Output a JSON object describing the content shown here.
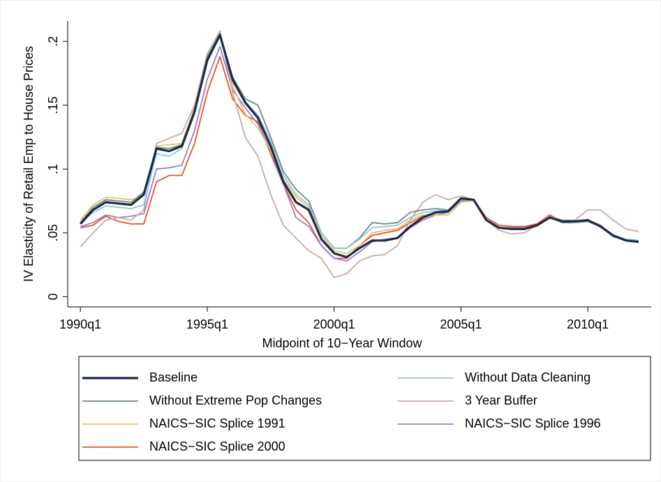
{
  "chart_data": {
    "type": "line",
    "xlabel": "Midpoint of 10−Year Window",
    "ylabel": "IV Elasticity of Retail Emp to House Prices",
    "x": [
      "1990q1",
      "1990q3",
      "1991q1",
      "1991q3",
      "1992q1",
      "1992q3",
      "1993q1",
      "1993q3",
      "1994q1",
      "1994q3",
      "1995q1",
      "1995q3",
      "1996q1",
      "1996q3",
      "1997q1",
      "1997q3",
      "1998q1",
      "1998q3",
      "1999q1",
      "1999q3",
      "2000q1",
      "2000q3",
      "2001q1",
      "2001q3",
      "2002q1",
      "2002q3",
      "2003q1",
      "2003q3",
      "2004q1",
      "2004q3",
      "2005q1",
      "2005q3",
      "2006q1",
      "2006q3",
      "2007q1",
      "2007q3",
      "2008q1",
      "2008q3",
      "2009q1",
      "2009q3",
      "2010q1",
      "2010q3",
      "2011q1",
      "2011q3",
      "2012q1"
    ],
    "xlim": [
      "1989q3",
      "2012q3"
    ],
    "xticks": [
      "1990q1",
      "1995q1",
      "2000q1",
      "2005q1",
      "2010q1"
    ],
    "ylim": [
      -0.008,
      0.216
    ],
    "yticks": [
      0,
      {
        "value": 0.05,
        "label": ".05"
      },
      {
        "value": 0.1,
        "label": ".1"
      },
      {
        "value": 0.15,
        "label": ".15"
      },
      {
        "value": 0.2,
        "label": ".2"
      }
    ],
    "series": [
      {
        "name": "Baseline",
        "color": "#1a2a4a",
        "values": [
          0.057,
          0.068,
          0.074,
          0.073,
          0.072,
          0.08,
          0.116,
          0.114,
          0.118,
          0.145,
          0.185,
          0.205,
          0.17,
          0.152,
          0.14,
          0.118,
          0.09,
          0.074,
          0.068,
          0.045,
          0.034,
          0.031,
          0.038,
          0.044,
          0.044,
          0.046,
          0.055,
          0.062,
          0.066,
          0.067,
          0.077,
          0.076,
          0.06,
          0.054,
          0.053,
          0.053,
          0.056,
          0.062,
          0.059,
          0.059,
          0.06,
          0.055,
          0.048,
          0.044,
          0.043
        ]
      },
      {
        "name": "Without Data Cleaning",
        "color": "#93c3e3",
        "values": [
          0.058,
          0.066,
          0.071,
          0.07,
          0.069,
          0.072,
          0.112,
          0.11,
          0.116,
          0.143,
          0.185,
          0.204,
          0.168,
          0.153,
          0.142,
          0.122,
          0.095,
          0.08,
          0.072,
          0.05,
          0.038,
          0.038,
          0.045,
          0.054,
          0.055,
          0.056,
          0.062,
          0.066,
          0.067,
          0.068,
          0.076,
          0.076,
          0.06,
          0.054,
          0.053,
          0.053,
          0.056,
          0.062,
          0.059,
          0.058,
          0.06,
          0.055,
          0.048,
          0.045,
          0.044
        ]
      },
      {
        "name": "Without Extreme Pop Changes",
        "color": "#6b8c82",
        "values": [
          0.058,
          0.07,
          0.076,
          0.075,
          0.074,
          0.082,
          0.117,
          0.116,
          0.119,
          0.146,
          0.188,
          0.206,
          0.172,
          0.155,
          0.15,
          0.125,
          0.098,
          0.084,
          0.075,
          0.05,
          0.038,
          0.038,
          0.046,
          0.058,
          0.057,
          0.058,
          0.066,
          0.068,
          0.069,
          0.068,
          0.076,
          0.076,
          0.06,
          0.054,
          0.053,
          0.053,
          0.056,
          0.062,
          0.058,
          0.058,
          0.059,
          0.055,
          0.047,
          0.045,
          0.044
        ]
      },
      {
        "name": "3 Year Buffer",
        "color": "#c9a9a1",
        "values": [
          0.039,
          0.05,
          0.06,
          0.062,
          0.06,
          0.068,
          0.12,
          0.124,
          0.128,
          0.15,
          0.19,
          0.208,
          0.16,
          0.125,
          0.11,
          0.08,
          0.056,
          0.046,
          0.036,
          0.03,
          0.015,
          0.018,
          0.028,
          0.032,
          0.033,
          0.04,
          0.06,
          0.074,
          0.08,
          0.076,
          0.079,
          0.076,
          0.06,
          0.052,
          0.049,
          0.05,
          0.056,
          0.063,
          0.06,
          0.06,
          0.068,
          0.068,
          0.06,
          0.053,
          0.051
        ]
      },
      {
        "name": "NAICS−SIC Splice 1991",
        "color": "#e6c65e",
        "values": [
          0.06,
          0.072,
          0.078,
          0.077,
          0.076,
          0.079,
          0.118,
          0.119,
          0.12,
          0.148,
          0.19,
          0.208,
          0.165,
          0.143,
          0.132,
          0.115,
          0.092,
          0.078,
          0.07,
          0.048,
          0.036,
          0.034,
          0.04,
          0.05,
          0.052,
          0.053,
          0.06,
          0.064,
          0.064,
          0.064,
          0.074,
          0.075,
          0.06,
          0.054,
          0.053,
          0.053,
          0.055,
          0.062,
          0.058,
          0.058,
          0.059,
          0.055,
          0.048,
          0.045,
          0.044
        ]
      },
      {
        "name": "NAICS−SIC Splice 1996",
        "color": "#8f80d2",
        "values": [
          0.055,
          0.058,
          0.064,
          0.062,
          0.063,
          0.065,
          0.1,
          0.101,
          0.103,
          0.13,
          0.17,
          0.196,
          0.162,
          0.148,
          0.135,
          0.115,
          0.088,
          0.062,
          0.055,
          0.04,
          0.03,
          0.028,
          0.035,
          0.043,
          0.045,
          0.046,
          0.054,
          0.06,
          0.064,
          0.066,
          0.075,
          0.076,
          0.06,
          0.054,
          0.054,
          0.054,
          0.056,
          0.063,
          0.058,
          0.058,
          0.059,
          0.055,
          0.047,
          0.044,
          0.043
        ]
      },
      {
        "name": "NAICS−SIC Splice 2000",
        "color": "#f04e1e",
        "values": [
          0.054,
          0.056,
          0.063,
          0.059,
          0.057,
          0.057,
          0.09,
          0.095,
          0.095,
          0.12,
          0.16,
          0.188,
          0.155,
          0.142,
          0.137,
          0.112,
          0.088,
          0.068,
          0.058,
          0.04,
          0.03,
          0.03,
          0.04,
          0.048,
          0.05,
          0.052,
          0.058,
          0.063,
          0.066,
          0.068,
          0.076,
          0.076,
          0.062,
          0.056,
          0.055,
          0.055,
          0.057,
          0.064,
          0.059,
          0.059,
          0.06,
          0.056,
          0.048,
          0.045,
          0.044
        ]
      }
    ]
  }
}
